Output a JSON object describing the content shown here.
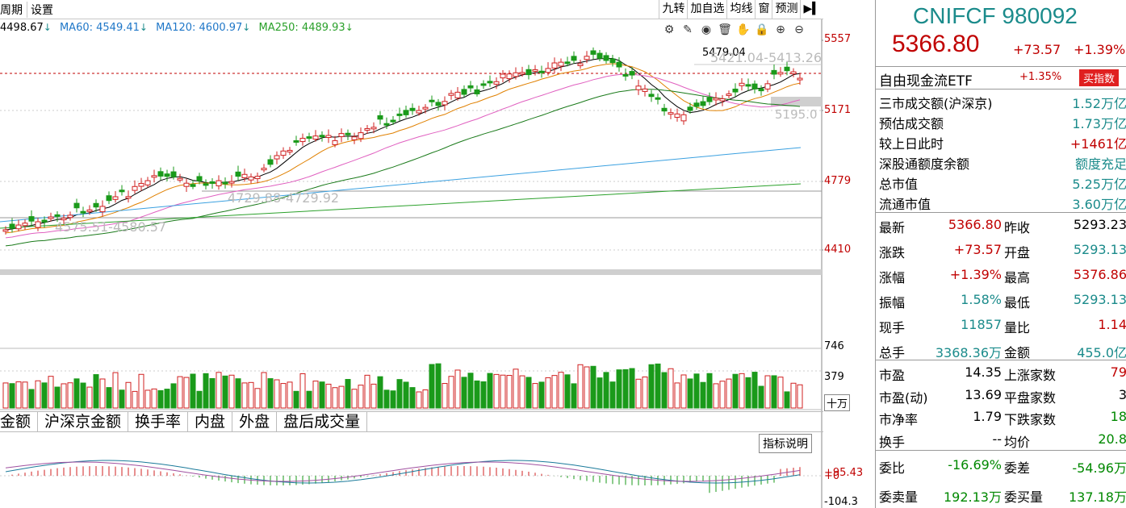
{
  "topbar": {
    "left_items": [
      "周期",
      "设置"
    ],
    "right_buttons": [
      "九转",
      "加自选",
      "均线",
      "窗",
      "预测"
    ]
  },
  "ma_line": [
    {
      "label": "4498.67",
      "arrow": "↓",
      "color": "#000000"
    },
    {
      "label": "MA60: 4549.41",
      "arrow": "↓",
      "color": "#1f77c8"
    },
    {
      "label": "MA120: 4600.97",
      "arrow": "↓",
      "color": "#5aa0d0"
    },
    {
      "label": "MA250: 4489.93",
      "arrow": "↓",
      "color": "#2aa02a"
    }
  ],
  "tool_icons": [
    "settings-icon",
    "pen-icon",
    "eye-icon",
    "trash-icon",
    "hand-icon",
    "lock-icon",
    "zoom-in-icon",
    "zoom-out-icon"
  ],
  "axis": {
    "price_labels": [
      "5557",
      "5171",
      "4779",
      "4410"
    ],
    "volume_labels": [
      "746",
      "379"
    ],
    "volume_unit": "十万",
    "indicator_labels": [
      "+95.43",
      "+0",
      "-104.3"
    ]
  },
  "annotations": {
    "high_marker": "5479.04",
    "range_top": "5421.04-5413.26",
    "level_mid": "5195.0",
    "range_low": "4729.88-4729.92",
    "range_bottom": "4575.51-4580.57"
  },
  "indicator_tabs": [
    "金额",
    "沪深京金额",
    "换手率",
    "内盘",
    "外盘",
    "盘后成交量"
  ],
  "indicator_help": "指标说明",
  "panel": {
    "title": "CNIFCF 980092",
    "price": "5366.80",
    "change": "+73.57",
    "change_pct": "+1.39%",
    "etf_label": "自由现金流ETF",
    "etf_pct": "+1.35%",
    "etf_button": "买指数",
    "market_rows": [
      {
        "label": "三市成交额(沪深京)",
        "value": "1.52万亿",
        "color": "teal"
      },
      {
        "label": "预估成交额",
        "value": "1.73万亿",
        "color": "teal"
      },
      {
        "label": "较上日此时",
        "value": "+1461亿",
        "color": "red"
      },
      {
        "label": "深股通额度余额",
        "value": "额度充足",
        "color": "teal"
      },
      {
        "label": "总市值",
        "value": "5.25万亿",
        "color": "teal"
      },
      {
        "label": "流通市值",
        "value": "3.60万亿",
        "color": "teal"
      }
    ],
    "quote_rows": [
      {
        "l1": "最新",
        "v1": "5366.80",
        "c1": "red",
        "l2": "昨收",
        "v2": "5293.23",
        "c2": "black"
      },
      {
        "l1": "涨跌",
        "v1": "+73.57",
        "c1": "red",
        "l2": "开盘",
        "v2": "5293.13",
        "c2": "teal"
      },
      {
        "l1": "涨幅",
        "v1": "+1.39%",
        "c1": "red",
        "l2": "最高",
        "v2": "5376.86",
        "c2": "red"
      },
      {
        "l1": "振幅",
        "v1": "1.58%",
        "c1": "teal",
        "l2": "最低",
        "v2": "5293.13",
        "c2": "teal"
      },
      {
        "l1": "现手",
        "v1": "11857",
        "c1": "teal",
        "l2": "量比",
        "v2": "1.14",
        "c2": "red"
      },
      {
        "l1": "总手",
        "v1": "3368.36万",
        "c1": "teal",
        "l2": "金额",
        "v2": "455.0亿",
        "c2": "teal"
      }
    ],
    "valuation_rows": [
      {
        "l1": "市盈",
        "v1": "14.35",
        "c1": "black",
        "l2": "上涨家数",
        "v2": "79",
        "c2": "red"
      },
      {
        "l1": "市盈(动)",
        "v1": "13.69",
        "c1": "black",
        "l2": "平盘家数",
        "v2": "3",
        "c2": "black"
      },
      {
        "l1": "市净率",
        "v1": "1.79",
        "c1": "black",
        "l2": "下跌家数",
        "v2": "18",
        "c2": "grn"
      },
      {
        "l1": "换手",
        "v1": "--",
        "c1": "black",
        "l2": "均价",
        "v2": "20.8",
        "c2": "grn"
      }
    ],
    "order_rows": [
      {
        "l1": "委比",
        "v1": "-16.69%",
        "c1": "grn",
        "l2": "委差",
        "v2": "-54.96万",
        "c2": "grn"
      },
      {
        "l1": "委卖量",
        "v1": "192.13万",
        "c1": "grn",
        "l2": "委买量",
        "v2": "137.18万",
        "c2": "grn"
      }
    ]
  },
  "colors": {
    "up": "#d02020",
    "down": "#1a9a1a",
    "teal": "#1b8b8b"
  }
}
